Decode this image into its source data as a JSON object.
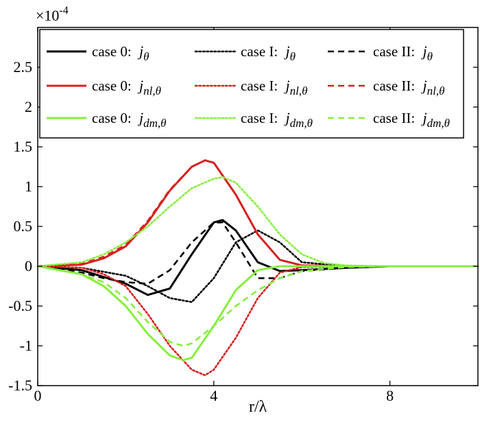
{
  "chart_data": {
    "type": "line",
    "title": "",
    "xlabel": "r/λ",
    "ylabel": "",
    "xlim": [
      0,
      10
    ],
    "ylim": [
      -1.5,
      3.0
    ],
    "y_scale_label": "×10",
    "y_scale_exponent": "-4",
    "grid": false,
    "legend_placement": "top",
    "x_ticks": [
      {
        "value": 0,
        "label": "0"
      },
      {
        "value": 4,
        "label": "4"
      },
      {
        "value": 8,
        "label": "8"
      }
    ],
    "y_ticks": [
      {
        "value": -1.5,
        "label": "-1.5"
      },
      {
        "value": -1,
        "label": "-1"
      },
      {
        "value": -0.5,
        "label": "-0.5"
      },
      {
        "value": 0,
        "label": "0"
      },
      {
        "value": 0.5,
        "label": "0.5"
      },
      {
        "value": 1,
        "label": "1"
      },
      {
        "value": 1.5,
        "label": "1.5"
      },
      {
        "value": 2,
        "label": "2"
      },
      {
        "value": 2.5,
        "label": "2.5"
      }
    ],
    "colors": {
      "black": "#000000",
      "red": "#d62020",
      "green": "#86ef3c"
    },
    "series": [
      {
        "name": "case 0: j_θ",
        "case_label": "case 0:",
        "sub_label": "θ",
        "color": "#000000",
        "dash": "solid",
        "x": [
          0,
          1,
          2,
          2.5,
          3,
          3.5,
          4,
          4.2,
          4.5,
          5,
          5.5,
          6,
          7,
          8,
          9,
          10
        ],
        "y": [
          0,
          -0.05,
          -0.22,
          -0.36,
          -0.28,
          0.15,
          0.55,
          0.58,
          0.45,
          0.05,
          -0.06,
          -0.05,
          -0.02,
          0,
          0,
          0
        ]
      },
      {
        "name": "case I: j_θ",
        "case_label": "case I:",
        "sub_label": "θ",
        "color": "#000000",
        "dash": "dot",
        "x": [
          0,
          1,
          2,
          2.5,
          3,
          3.5,
          4,
          4.5,
          5,
          5.5,
          6,
          7,
          8,
          9,
          10
        ],
        "y": [
          0,
          -0.02,
          -0.12,
          -0.25,
          -0.4,
          -0.45,
          -0.15,
          0.3,
          0.45,
          0.3,
          0.05,
          0,
          0,
          0,
          0
        ]
      },
      {
        "name": "case II: j_θ",
        "case_label": "case II:",
        "sub_label": "θ",
        "color": "#000000",
        "dash": "dash",
        "x": [
          0,
          1,
          1.5,
          2,
          2.5,
          3,
          3.5,
          4,
          4.2,
          4.5,
          5,
          5.5,
          6,
          7,
          8,
          9,
          10
        ],
        "y": [
          0,
          -0.08,
          -0.15,
          -0.2,
          -0.22,
          -0.05,
          0.3,
          0.55,
          0.55,
          0.3,
          -0.15,
          -0.15,
          -0.06,
          -0.02,
          0,
          0,
          0
        ]
      },
      {
        "name": "case 0: j_nl,θ",
        "case_label": "case 0:",
        "sub_label": "nl,θ",
        "color": "#d62020",
        "dash": "solid",
        "x": [
          0,
          1,
          1.5,
          2,
          2.5,
          3,
          3.5,
          3.8,
          4,
          4.5,
          5,
          5.5,
          6,
          7,
          8,
          9,
          10
        ],
        "y": [
          0,
          0.02,
          0.1,
          0.25,
          0.55,
          0.95,
          1.25,
          1.33,
          1.3,
          0.9,
          0.4,
          0.08,
          0.01,
          0,
          0,
          0,
          0
        ]
      },
      {
        "name": "case I: j_nl,θ",
        "case_label": "case I:",
        "sub_label": "nl,θ",
        "color": "#d62020",
        "dash": "dot",
        "x": [
          0,
          1,
          1.5,
          2,
          2.5,
          3,
          3.5,
          3.8,
          4,
          4.5,
          5,
          5.5,
          6,
          7,
          8,
          9,
          10
        ],
        "y": [
          0,
          -0.02,
          -0.1,
          -0.25,
          -0.6,
          -1.0,
          -1.3,
          -1.37,
          -1.3,
          -0.9,
          -0.4,
          -0.08,
          -0.01,
          0,
          0,
          0,
          0
        ]
      },
      {
        "name": "case II: j_nl,θ",
        "case_label": "case II:",
        "sub_label": "nl,θ",
        "color": "#d62020",
        "dash": "dash",
        "x": [
          0,
          1,
          1.5,
          2,
          2.5,
          3,
          3.5,
          3.8,
          4,
          4.5,
          5,
          5.5,
          6,
          7,
          8,
          9,
          10
        ],
        "y": [
          0,
          0.03,
          0.12,
          0.27,
          0.57,
          0.96,
          1.25,
          1.33,
          1.3,
          0.9,
          0.4,
          0.08,
          0.01,
          0,
          0,
          0,
          0
        ]
      },
      {
        "name": "case 0: j_dm,θ",
        "case_label": "case 0:",
        "sub_label": "dm,θ",
        "color": "#86ef3c",
        "dash": "solid",
        "x": [
          0,
          1,
          1.5,
          2,
          2.5,
          3,
          3.3,
          3.5,
          4,
          4.5,
          5,
          5.5,
          6,
          7,
          8,
          9,
          10
        ],
        "y": [
          0,
          -0.1,
          -0.25,
          -0.5,
          -0.85,
          -1.12,
          -1.18,
          -1.15,
          -0.75,
          -0.3,
          -0.05,
          0,
          0,
          0,
          0,
          0,
          0
        ]
      },
      {
        "name": "case I: j_dm,θ",
        "case_label": "case I:",
        "sub_label": "dm,θ",
        "color": "#86ef3c",
        "dash": "dot",
        "x": [
          0,
          1,
          1.5,
          2,
          2.5,
          3,
          3.5,
          4,
          4.2,
          4.5,
          5,
          5.5,
          6,
          6.5,
          7,
          8,
          9,
          10
        ],
        "y": [
          0,
          0.05,
          0.15,
          0.3,
          0.5,
          0.75,
          0.98,
          1.1,
          1.12,
          1.05,
          0.75,
          0.4,
          0.15,
          0.04,
          0.01,
          0,
          0,
          0
        ]
      },
      {
        "name": "case II: j_dm,θ",
        "case_label": "case II:",
        "sub_label": "dm,θ",
        "color": "#86ef3c",
        "dash": "dash",
        "x": [
          0,
          1,
          1.5,
          2,
          2.5,
          3,
          3.3,
          3.5,
          4,
          4.5,
          5,
          5.5,
          6,
          7,
          8,
          9,
          10
        ],
        "y": [
          0,
          -0.1,
          -0.2,
          -0.4,
          -0.7,
          -0.95,
          -1.0,
          -0.97,
          -0.75,
          -0.5,
          -0.3,
          -0.15,
          -0.06,
          -0.01,
          0,
          0,
          0
        ]
      }
    ]
  }
}
